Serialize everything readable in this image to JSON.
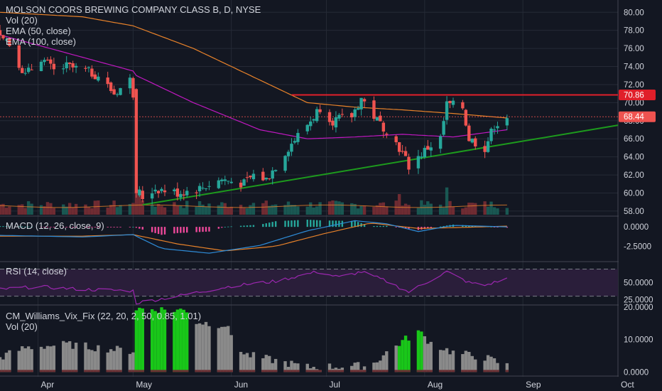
{
  "colors": {
    "background": "#131722",
    "text": "#d1d4dc",
    "grid": "#252a36",
    "up": "#26a69a",
    "down": "#ef5350",
    "ema50": "#c018c0",
    "ema100": "#e8822a",
    "resistance": "#e01f2a",
    "support": "#1d9a1d",
    "macd": "#2e8bd6",
    "signal": "#e8822a",
    "rsi": "#9c27b0",
    "vix_green": "#19c719",
    "vix_gray": "#8a8a8a",
    "last_price_label": "#ef5350"
  },
  "main_pane": {
    "title": "MOLSON COORS BREWING COMPANY CLASS B, D, NYSE",
    "indicators": [
      "Vol (20)",
      "EMA (50, close)",
      "EMA (100, close)"
    ],
    "last_price_label": "68.44",
    "resistance_label": "70.86"
  },
  "macd_pane": {
    "title": "MACD (12, 26, close, 9)"
  },
  "rsi_pane": {
    "title": "RSI (14, close)"
  },
  "vix_pane": {
    "title": "CM_Williams_Vix_Fix (22, 20, 2, 50, 0.85, 1.01)",
    "subtitle": "Vol (20)"
  },
  "x_axis_labels": [
    "Apr",
    "May",
    "Jun",
    "Jul",
    "Aug",
    "Sep",
    "Oct"
  ],
  "chart_data": [
    {
      "type": "candlestick",
      "title": "MOLSON COORS BREWING COMPANY CLASS B, D, NYSE",
      "x_range": [
        "2018-03-20",
        "2018-10-01"
      ],
      "y_ticks": [
        58.0,
        60.0,
        62.0,
        64.0,
        66.0,
        68.0,
        70.0,
        72.0,
        74.0,
        76.0,
        78.0,
        80.0
      ],
      "ylim": [
        57.6,
        81.2
      ],
      "close_anchors": [
        [
          "2018-03-20",
          78.0
        ],
        [
          "2018-03-23",
          76.5
        ],
        [
          "2018-03-28",
          73.0
        ],
        [
          "2018-04-02",
          75.0
        ],
        [
          "2018-04-06",
          73.5
        ],
        [
          "2018-04-10",
          74.0
        ],
        [
          "2018-04-16",
          73.5
        ],
        [
          "2018-04-20",
          73.0
        ],
        [
          "2018-04-25",
          71.0
        ],
        [
          "2018-04-30",
          72.5
        ],
        [
          "2018-05-01",
          71.0
        ],
        [
          "2018-05-02",
          60.5
        ],
        [
          "2018-05-04",
          59.5
        ],
        [
          "2018-05-08",
          60.5
        ],
        [
          "2018-05-15",
          60.0
        ],
        [
          "2018-05-22",
          60.5
        ],
        [
          "2018-05-29",
          61.5
        ],
        [
          "2018-06-05",
          61.0
        ],
        [
          "2018-06-08",
          62.0
        ],
        [
          "2018-06-12",
          61.5
        ],
        [
          "2018-06-15",
          63.0
        ],
        [
          "2018-06-20",
          65.5
        ],
        [
          "2018-06-26",
          68.0
        ],
        [
          "2018-06-29",
          69.5
        ],
        [
          "2018-07-03",
          68.0
        ],
        [
          "2018-07-09",
          68.5
        ],
        [
          "2018-07-12",
          70.5
        ],
        [
          "2018-07-17",
          68.0
        ],
        [
          "2018-07-20",
          67.0
        ],
        [
          "2018-07-24",
          65.0
        ],
        [
          "2018-07-27",
          63.0
        ],
        [
          "2018-07-30",
          64.0
        ],
        [
          "2018-08-02",
          65.0
        ],
        [
          "2018-08-06",
          66.0
        ],
        [
          "2018-08-08",
          69.8
        ],
        [
          "2018-08-13",
          69.5
        ],
        [
          "2018-08-15",
          66.0
        ],
        [
          "2018-08-20",
          65.0
        ],
        [
          "2018-08-23",
          67.5
        ],
        [
          "2018-08-27",
          68.44
        ]
      ],
      "ema50_anchors": [
        [
          "2018-03-20",
          77.5
        ],
        [
          "2018-04-10",
          75.5
        ],
        [
          "2018-05-01",
          73.5
        ],
        [
          "2018-05-02",
          73.0
        ],
        [
          "2018-05-20",
          70.0
        ],
        [
          "2018-06-10",
          67.0
        ],
        [
          "2018-06-25",
          66.0
        ],
        [
          "2018-07-10",
          66.2
        ],
        [
          "2018-07-25",
          66.5
        ],
        [
          "2018-08-10",
          66.2
        ],
        [
          "2018-08-27",
          67.0
        ]
      ],
      "ema100_anchors": [
        [
          "2018-03-20",
          80.0
        ],
        [
          "2018-04-15",
          79.5
        ],
        [
          "2018-05-01",
          78.5
        ],
        [
          "2018-05-20",
          76.0
        ],
        [
          "2018-06-10",
          72.5
        ],
        [
          "2018-06-25",
          70.0
        ],
        [
          "2018-07-10",
          69.5
        ],
        [
          "2018-07-25",
          69.2
        ],
        [
          "2018-08-10",
          68.8
        ],
        [
          "2018-08-27",
          68.3
        ]
      ],
      "resistance": {
        "from": "2018-06-29",
        "to": "2018-10-01",
        "value": 70.86
      },
      "support": {
        "from": "2018-05-04",
        "from_value": 58.7,
        "to": "2018-10-01",
        "to_value": 67.5
      },
      "last_price": 68.44,
      "volume_ma_level": 0.35
    },
    {
      "type": "line",
      "title": "MACD (12, 26, close, 9)",
      "y_ticks": [
        0.0,
        -2.5
      ],
      "ylim": [
        -4.4,
        1.3
      ],
      "macd_anchors": [
        [
          "2018-03-20",
          -1.1
        ],
        [
          "2018-04-15",
          -1.3
        ],
        [
          "2018-05-01",
          -1.0
        ],
        [
          "2018-05-10",
          -2.8
        ],
        [
          "2018-05-25",
          -3.4
        ],
        [
          "2018-06-10",
          -2.4
        ],
        [
          "2018-06-25",
          -0.5
        ],
        [
          "2018-07-10",
          0.8
        ],
        [
          "2018-07-20",
          0.4
        ],
        [
          "2018-07-30",
          -0.6
        ],
        [
          "2018-08-10",
          0.2
        ],
        [
          "2018-08-27",
          0.0
        ]
      ],
      "signal_anchors": [
        [
          "2018-03-20",
          -1.2
        ],
        [
          "2018-04-15",
          -1.2
        ],
        [
          "2018-05-01",
          -1.0
        ],
        [
          "2018-05-15",
          -2.2
        ],
        [
          "2018-05-30",
          -3.1
        ],
        [
          "2018-06-15",
          -2.5
        ],
        [
          "2018-06-30",
          -0.9
        ],
        [
          "2018-07-15",
          0.5
        ],
        [
          "2018-07-30",
          -0.2
        ],
        [
          "2018-08-10",
          -0.1
        ],
        [
          "2018-08-27",
          0.1
        ]
      ]
    },
    {
      "type": "line",
      "title": "RSI (14, close)",
      "y_ticks": [
        50.0,
        25.0
      ],
      "ylim": [
        18,
        80
      ],
      "bands": [
        30,
        70
      ],
      "rsi_anchors": [
        [
          "2018-03-20",
          40
        ],
        [
          "2018-04-01",
          44
        ],
        [
          "2018-04-15",
          40
        ],
        [
          "2018-05-01",
          38
        ],
        [
          "2018-05-02",
          20
        ],
        [
          "2018-05-15",
          30
        ],
        [
          "2018-06-01",
          45
        ],
        [
          "2018-06-15",
          52
        ],
        [
          "2018-06-28",
          66
        ],
        [
          "2018-07-05",
          58
        ],
        [
          "2018-07-12",
          66
        ],
        [
          "2018-07-20",
          52
        ],
        [
          "2018-07-27",
          36
        ],
        [
          "2018-08-03",
          54
        ],
        [
          "2018-08-08",
          66
        ],
        [
          "2018-08-15",
          50
        ],
        [
          "2018-08-20",
          46
        ],
        [
          "2018-08-27",
          56
        ]
      ]
    },
    {
      "type": "bar",
      "title": "CM_Williams_Vix_Fix (22, 20, 2, 50, 0.85, 1.01)",
      "y_ticks": [
        20.0,
        10.0,
        0.0
      ],
      "ylim": [
        -0.8,
        20.4
      ],
      "vix_anchors": [
        [
          "2018-03-20",
          4.5
        ],
        [
          "2018-03-28",
          7.5
        ],
        [
          "2018-04-10",
          8.5
        ],
        [
          "2018-04-25",
          7.0
        ],
        [
          "2018-05-01",
          6.5
        ],
        [
          "2018-05-02",
          19.5
        ],
        [
          "2018-05-18",
          19.0
        ],
        [
          "2018-05-20",
          15.5
        ],
        [
          "2018-05-30",
          14.5
        ],
        [
          "2018-06-05",
          5.5
        ],
        [
          "2018-06-25",
          1.5
        ],
        [
          "2018-07-15",
          2.0
        ],
        [
          "2018-07-20",
          6.0
        ],
        [
          "2018-07-25",
          9.5
        ],
        [
          "2018-07-30",
          12.5
        ],
        [
          "2018-08-03",
          9.0
        ],
        [
          "2018-08-10",
          6.0
        ],
        [
          "2018-08-20",
          4.5
        ],
        [
          "2018-08-27",
          2.0
        ]
      ],
      "green_ranges": [
        [
          "2018-05-02",
          "2018-05-18"
        ],
        [
          "2018-07-24",
          "2018-07-31"
        ]
      ]
    }
  ]
}
